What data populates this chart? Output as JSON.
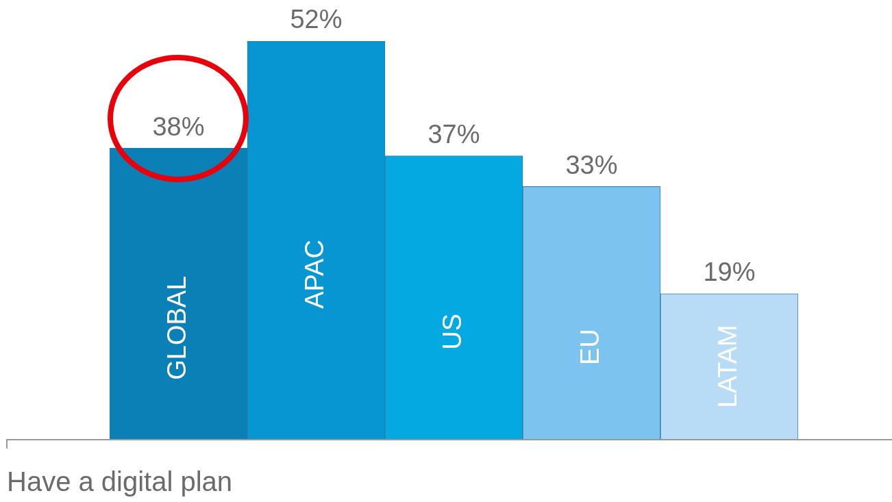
{
  "chart_data": {
    "type": "bar",
    "xlabel": "Have a digital plan",
    "categories": [
      "GLOBAL",
      "APAC",
      "US",
      "EU",
      "LATAM"
    ],
    "values": [
      38,
      52,
      37,
      33,
      19
    ],
    "colors": [
      "#0a80b6",
      "#0796d1",
      "#05a9e2",
      "#7dc3ef",
      "#b8dcf5"
    ],
    "value_labels": [
      "38%",
      "52%",
      "37%",
      "33%",
      "19%"
    ],
    "legend": false
  }
}
